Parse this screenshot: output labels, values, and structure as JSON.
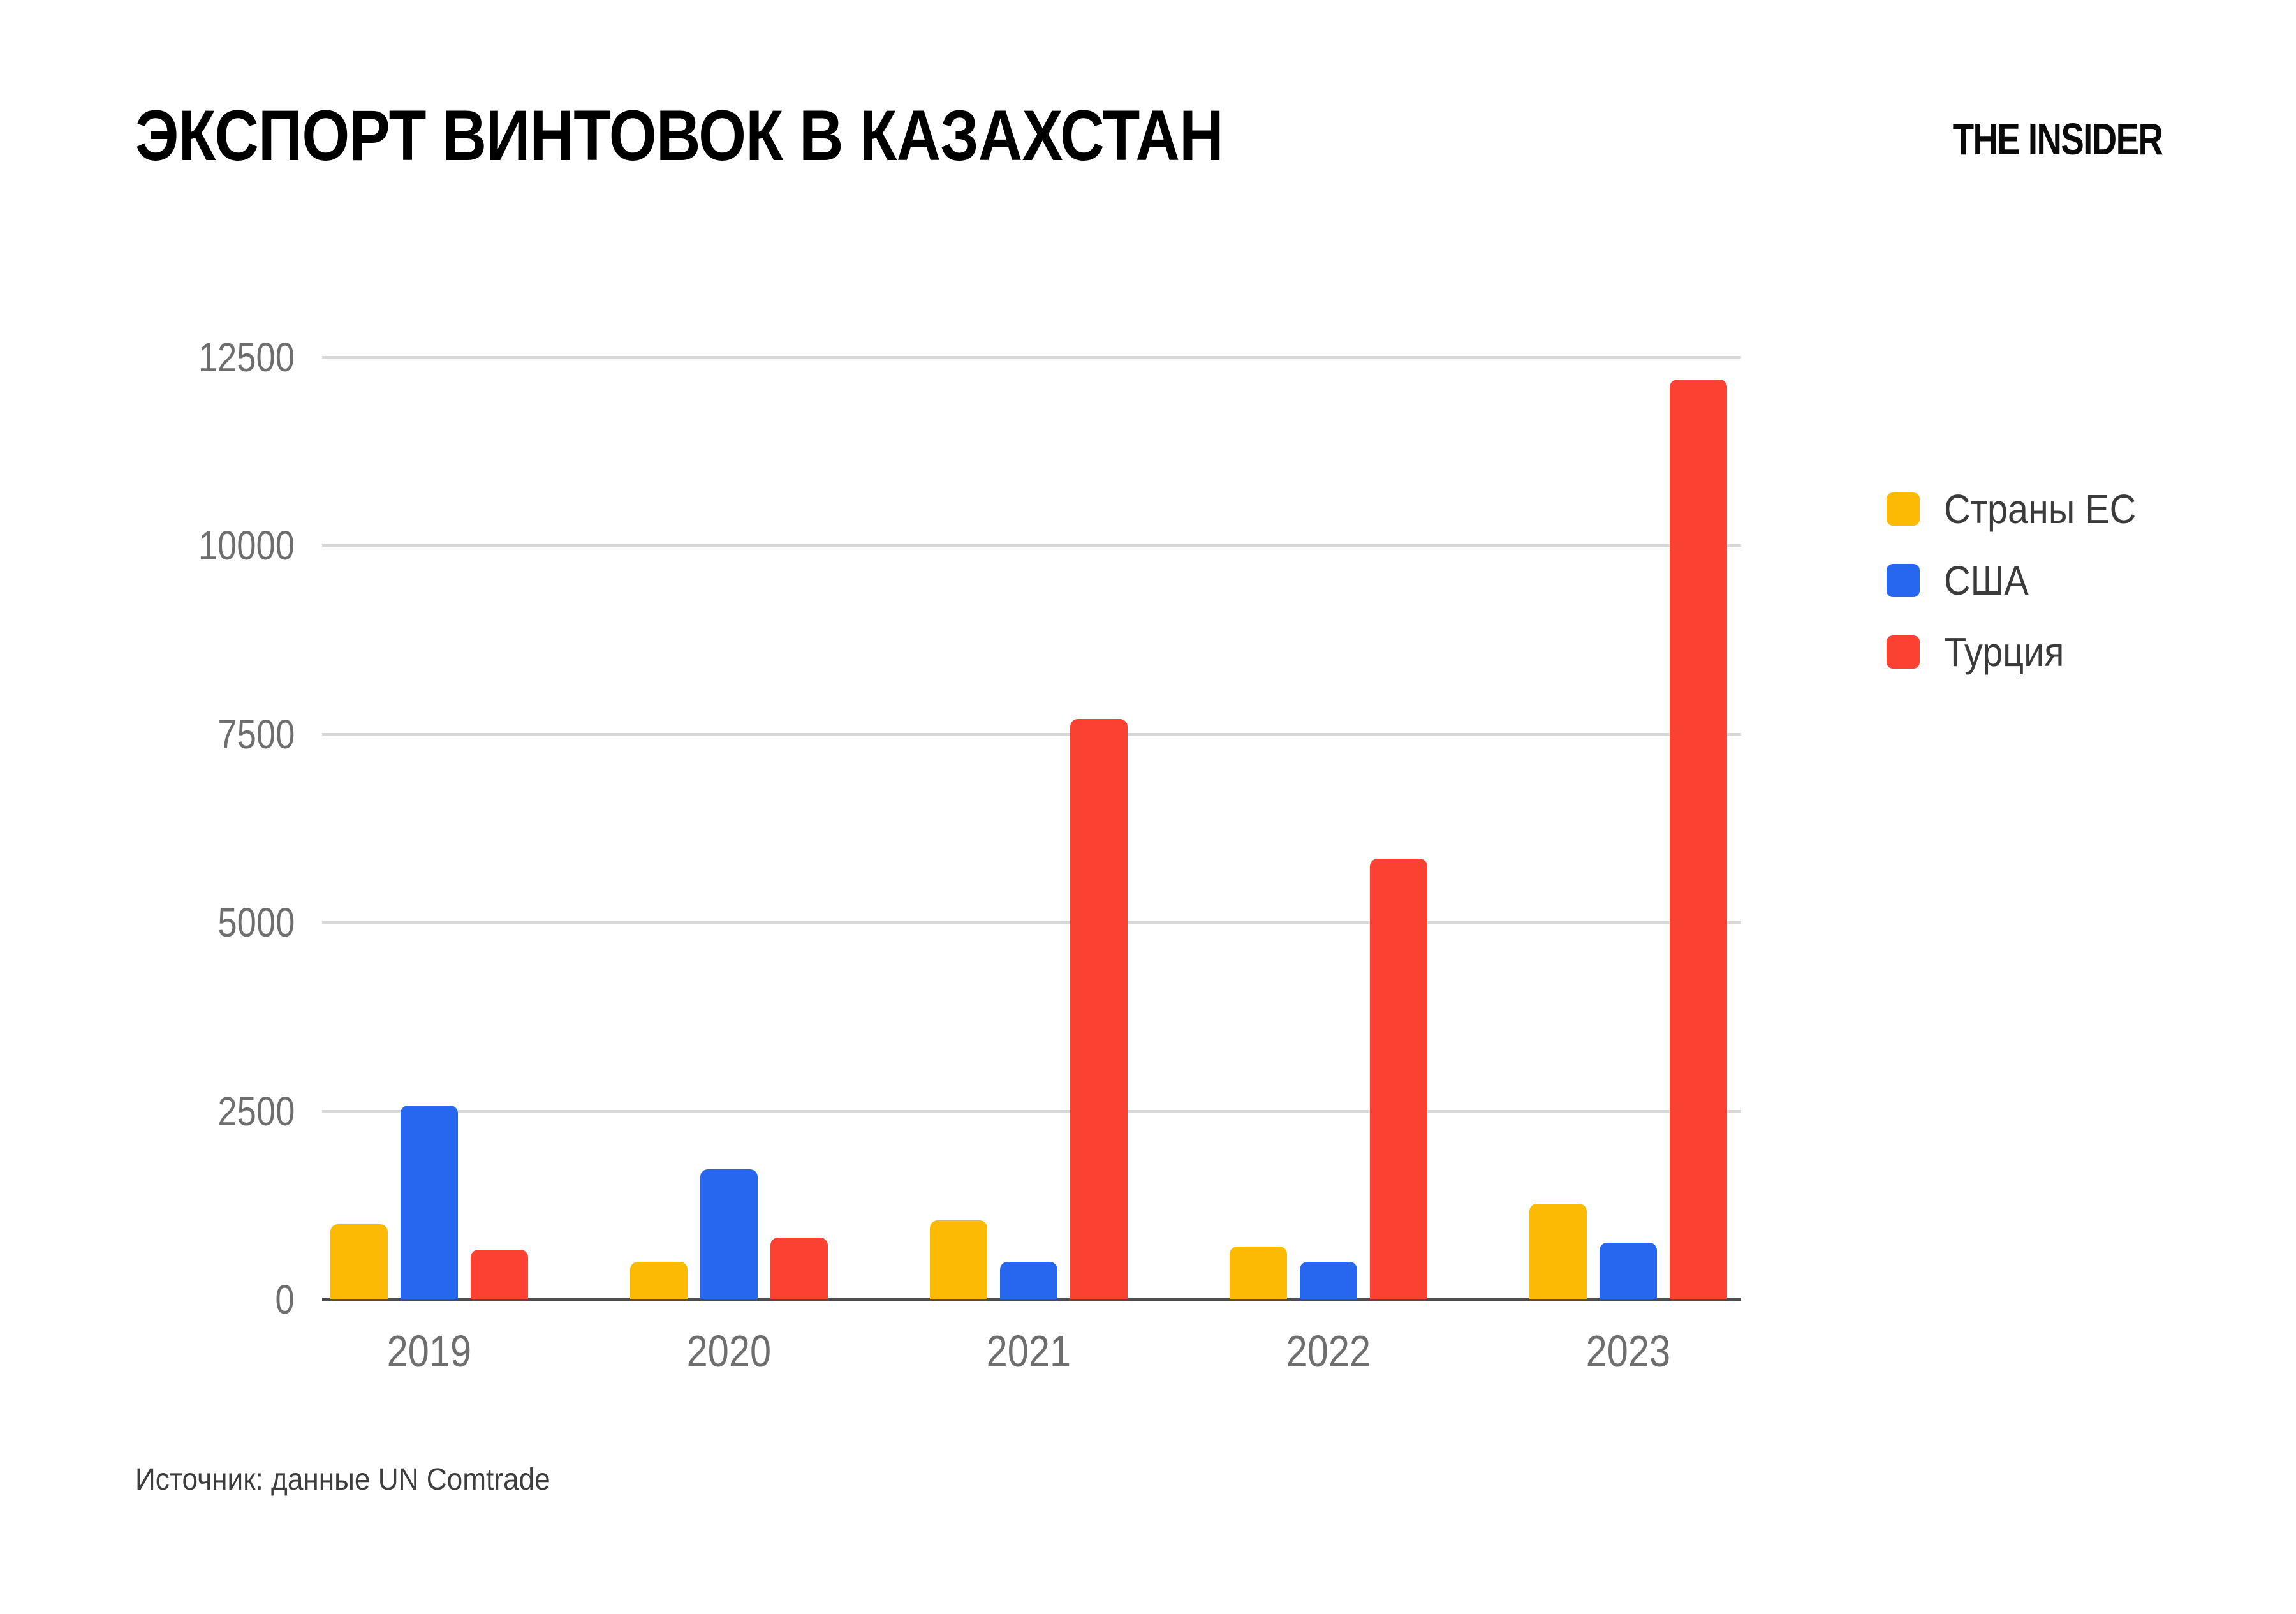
{
  "page": {
    "title": "ЭКСПОРТ ВИНТОВОК В КАЗАХСТАН",
    "logo": "THE INSIDER",
    "source": "Источник: данные UN Comtrade"
  },
  "colors": {
    "eu": "#FCBA04",
    "usa": "#2767F0",
    "turkey": "#FA4132",
    "gridline": "#D8D8D8",
    "axis_line": "#4D4D4D",
    "tick_text": "#6E6E6E",
    "legend_text": "#3B3B3B",
    "title_text": "#000000"
  },
  "chart_data": {
    "type": "bar",
    "title": "ЭКСПОРТ ВИНТОВОК В КАЗАХСТАН",
    "categories": [
      "2019",
      "2020",
      "2021",
      "2022",
      "2023"
    ],
    "series": [
      {
        "name": "Страны ЕС",
        "color": "#FCBA04",
        "values": [
          1000,
          500,
          1050,
          700,
          1270
        ]
      },
      {
        "name": "США",
        "color": "#2767F0",
        "values": [
          2570,
          1730,
          500,
          500,
          750
        ]
      },
      {
        "name": "Турция",
        "color": "#FA4132",
        "values": [
          660,
          820,
          7700,
          5850,
          12200
        ]
      }
    ],
    "xlabel": "",
    "ylabel": "",
    "ylim": [
      0,
      12500
    ],
    "yticks": [
      0,
      2500,
      5000,
      7500,
      10000,
      12500
    ],
    "grid": true,
    "legend_position": "right"
  }
}
